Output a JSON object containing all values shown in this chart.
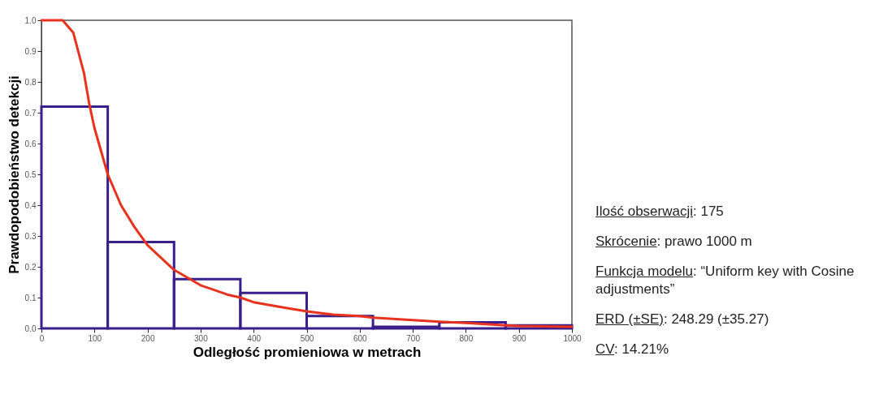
{
  "chart_data": {
    "type": "histogram",
    "xlabel": "Odległość promieniowa w metrach",
    "ylabel": "Prawdopodobieństwo detekcji",
    "xlim": [
      0,
      1000
    ],
    "xticks": [
      0,
      100,
      200,
      300,
      400,
      500,
      600,
      700,
      800,
      900,
      1000
    ],
    "ylim": [
      0,
      1
    ],
    "yticks": [
      {
        "value": 0,
        "label": "0.0"
      },
      0.1,
      0.2,
      0.3,
      0.4,
      0.5,
      0.6,
      0.7,
      0.8,
      0.9,
      {
        "value": 1,
        "label": "1.0"
      }
    ],
    "grid": false,
    "series": [
      {
        "color": "#3a1f8c",
        "bins": [
          0,
          125,
          250,
          375,
          500,
          625,
          750,
          875,
          1000
        ],
        "values": [
          0.72,
          0.28,
          0.16,
          0.115,
          0.04,
          0.005,
          0.02,
          0.01
        ]
      },
      {
        "type": "line",
        "color": "#e8321e",
        "x": [
          0,
          40,
          60,
          80,
          90,
          100,
          125,
          150,
          175,
          200,
          250,
          300,
          350,
          375,
          400,
          450,
          500,
          550,
          600,
          625,
          700,
          750,
          800,
          875,
          900,
          1000
        ],
        "values": [
          1.0,
          1.0,
          0.96,
          0.83,
          0.73,
          0.65,
          0.5,
          0.4,
          0.33,
          0.27,
          0.19,
          0.14,
          0.11,
          0.1,
          0.085,
          0.07,
          0.055,
          0.045,
          0.04,
          0.035,
          0.027,
          0.022,
          0.018,
          0.01,
          0.008,
          0.005
        ]
      }
    ],
    "annotations": [
      "Ilość obserwacji: 175",
      "Skrócenie: prawo 1000 m",
      "Funkcja modelu: “Uniform key with Cosine adjustments”",
      "ERD (±SE): 248.29 (±35.27)",
      "CV: 14.21%"
    ]
  }
}
